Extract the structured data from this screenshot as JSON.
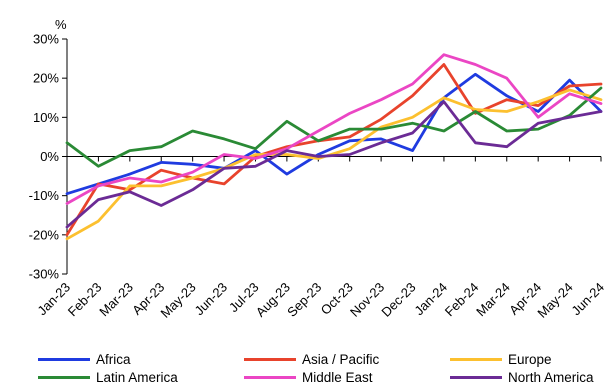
{
  "chart_data": {
    "type": "line",
    "ylabel": "%",
    "ylim": [
      -30,
      30
    ],
    "yticks": [
      -30,
      -20,
      -10,
      0,
      10,
      20,
      30
    ],
    "ytick_labels": [
      "-30%",
      "-20%",
      "-10%",
      "0%",
      "10%",
      "20%",
      "30%"
    ],
    "categories": [
      "Jan-23",
      "Feb-23",
      "Mar-23",
      "Apr-23",
      "May-23",
      "Jun-23",
      "Jul-23",
      "Aug-23",
      "Sep-23",
      "Oct-23",
      "Nov-23",
      "Dec-23",
      "Jan-24",
      "Feb-24",
      "Mar-24",
      "Apr-24",
      "May-24",
      "Jun-24"
    ],
    "grid": false,
    "legend_position": "bottom",
    "series": [
      {
        "name": "Africa",
        "color": "#1f3be0",
        "values": [
          -9.5,
          -7,
          -4.5,
          -1.5,
          -2,
          -3,
          1.5,
          -4.5,
          0.5,
          4,
          4.5,
          1.5,
          15,
          21,
          15.5,
          11.5,
          19.5,
          11.5
        ]
      },
      {
        "name": "Asia / Pacific",
        "color": "#e8432c",
        "values": [
          -20,
          -7,
          -8.5,
          -3.5,
          -5.5,
          -7,
          0,
          2.5,
          4,
          5,
          9.5,
          15.5,
          23.5,
          11,
          14.5,
          13,
          18,
          18.5
        ]
      },
      {
        "name": "Europe",
        "color": "#fcc02f",
        "values": [
          -21,
          -16.5,
          -7.5,
          -7.5,
          -5.5,
          -3,
          0.5,
          0.5,
          -0.5,
          2,
          7.5,
          10,
          15,
          12,
          11.5,
          14,
          17,
          14.5
        ]
      },
      {
        "name": "Latin America",
        "color": "#2a8a35",
        "values": [
          3.5,
          -2.5,
          1.5,
          2.5,
          6.5,
          4.5,
          2,
          9,
          4,
          7,
          7,
          8.5,
          6.5,
          11.5,
          6.5,
          7,
          10.5,
          17.5
        ]
      },
      {
        "name": "Middle East",
        "color": "#eb46c4",
        "values": [
          -12,
          -7.5,
          -5.5,
          -6.5,
          -4,
          0.5,
          -0.5,
          2,
          6.5,
          11,
          14.5,
          18.5,
          26,
          23.5,
          20,
          10,
          16,
          13.5
        ]
      },
      {
        "name": "North America",
        "color": "#6b2b95",
        "values": [
          -18,
          -11,
          -9,
          -12.5,
          -8.5,
          -3,
          -2.5,
          1.5,
          0,
          0.5,
          3.5,
          6,
          14,
          3.5,
          2.5,
          8.5,
          10,
          11.5
        ]
      }
    ]
  }
}
